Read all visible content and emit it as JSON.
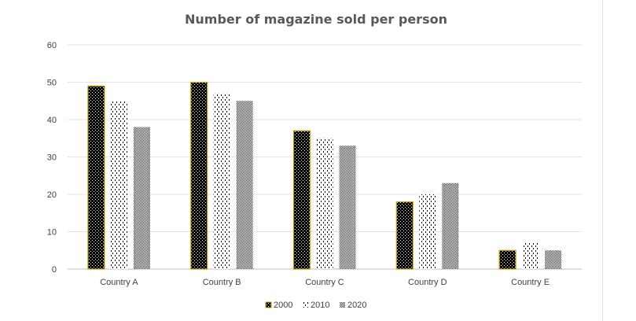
{
  "chart_data": {
    "type": "bar",
    "title": "Number of magazine sold per person",
    "xlabel": "",
    "ylabel": "",
    "categories": [
      "Country A",
      "Country B",
      "Country C",
      "Country D",
      "Country E"
    ],
    "series": [
      {
        "name": "2000",
        "values": [
          49,
          50,
          37,
          18,
          5
        ],
        "pattern": "dots-dark",
        "color": "#000000",
        "border": "#c9a400"
      },
      {
        "name": "2010",
        "values": [
          45,
          47,
          35,
          20,
          7
        ],
        "pattern": "dashes-light",
        "color": "#000000",
        "border": "none"
      },
      {
        "name": "2020",
        "values": [
          38,
          45,
          33,
          23,
          5
        ],
        "pattern": "checker-gray",
        "color": "#7f7f7f",
        "border": "none"
      }
    ],
    "ylim": [
      0,
      60
    ],
    "yticks": [
      "0",
      "10",
      "20",
      "30",
      "40",
      "50",
      "60"
    ],
    "grid": true,
    "legend": "bottom"
  }
}
